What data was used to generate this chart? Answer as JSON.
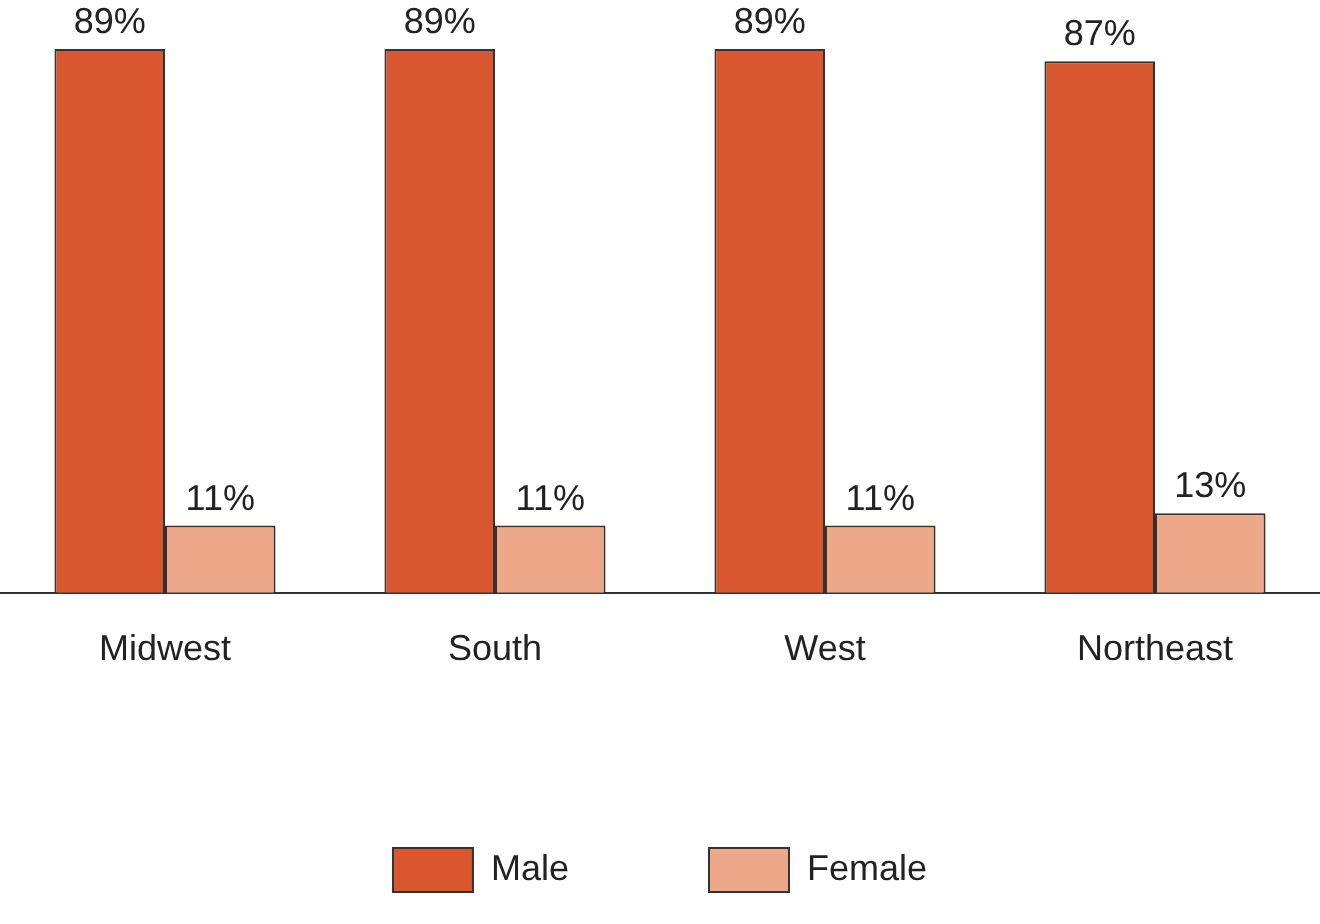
{
  "chart_data": {
    "type": "bar",
    "categories": [
      "Midwest",
      "South",
      "West",
      "Northeast"
    ],
    "series": [
      {
        "name": "Male",
        "color": "#d9572f",
        "values": [
          89,
          89,
          89,
          87
        ],
        "value_labels": [
          "89%",
          "89%",
          "89%",
          "87%"
        ]
      },
      {
        "name": "Female",
        "color": "#eda789",
        "values": [
          11,
          11,
          11,
          13
        ],
        "value_labels": [
          "11%",
          "11%",
          "11%",
          "13%"
        ]
      }
    ],
    "legend": "bottom",
    "grid": false
  }
}
